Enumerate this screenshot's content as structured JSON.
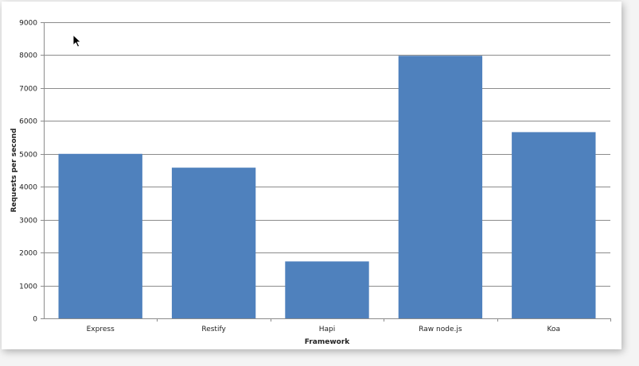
{
  "chart_data": {
    "type": "bar",
    "categories": [
      "Express",
      "Restify",
      "Hapi",
      "Raw node.js",
      "Koa"
    ],
    "values": [
      5000,
      4580,
      1730,
      7980,
      5660
    ],
    "title": "",
    "xlabel": "Framework",
    "ylabel": "Requests per second",
    "ylim": [
      0,
      9000
    ],
    "yticks": [
      0,
      1000,
      2000,
      3000,
      4000,
      5000,
      6000,
      7000,
      8000,
      9000
    ],
    "grid": true,
    "legend": "none",
    "bar_color": "#4f81bd",
    "grid_color": "#8c8c8c"
  }
}
